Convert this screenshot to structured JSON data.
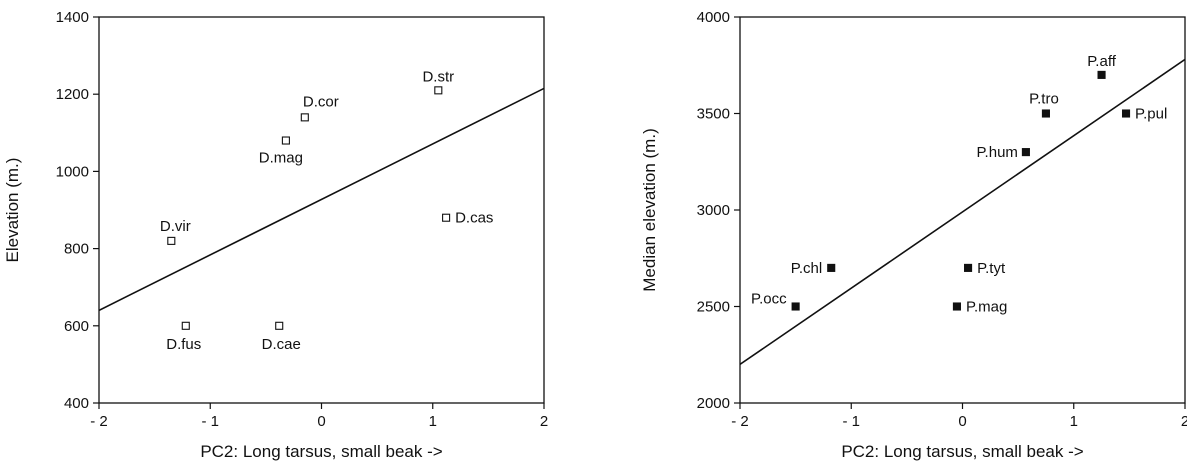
{
  "chart_data": [
    {
      "type": "scatter",
      "xlabel": "PC2: Long tarsus, small beak ->",
      "ylabel": "Elevation (m.)",
      "xlim": [
        -2,
        2
      ],
      "ylim": [
        400,
        1400
      ],
      "xticks": [
        -2,
        -1,
        0,
        1,
        2
      ],
      "xtick_labels": [
        "- 2",
        "- 1",
        "0",
        "1",
        "2"
      ],
      "yticks": [
        400,
        600,
        800,
        1000,
        1200,
        1400
      ],
      "marker": "open-square",
      "points": [
        {
          "label": "D.str",
          "x": 1.05,
          "y": 1210
        },
        {
          "label": "D.cor",
          "x": -0.15,
          "y": 1140
        },
        {
          "label": "D.mag",
          "x": -0.32,
          "y": 1080
        },
        {
          "label": "D.cas",
          "x": 1.12,
          "y": 880
        },
        {
          "label": "D.vir",
          "x": -1.35,
          "y": 820
        },
        {
          "label": "D.fus",
          "x": -1.22,
          "y": 600
        },
        {
          "label": "D.cae",
          "x": -0.38,
          "y": 600
        }
      ],
      "fit_line": {
        "x": [
          -2,
          2
        ],
        "y": [
          640,
          1215
        ]
      }
    },
    {
      "type": "scatter",
      "xlabel": "PC2: Long tarsus, small beak ->",
      "ylabel": "Median elevation (m.)",
      "xlim": [
        -2,
        2
      ],
      "ylim": [
        2000,
        4000
      ],
      "xticks": [
        -2,
        -1,
        0,
        1,
        2
      ],
      "xtick_labels": [
        "- 2",
        "- 1",
        "0",
        "1",
        "2"
      ],
      "yticks": [
        2000,
        2500,
        3000,
        3500,
        4000
      ],
      "marker": "filled-square",
      "points": [
        {
          "label": "P.aff",
          "x": 1.25,
          "y": 3700
        },
        {
          "label": "P.tro",
          "x": 0.75,
          "y": 3500
        },
        {
          "label": "P.pul",
          "x": 1.47,
          "y": 3500
        },
        {
          "label": "P.hum",
          "x": 0.57,
          "y": 3300
        },
        {
          "label": "P.chl",
          "x": -1.18,
          "y": 2700
        },
        {
          "label": "P.tyt",
          "x": 0.05,
          "y": 2700
        },
        {
          "label": "P.occ",
          "x": -1.5,
          "y": 2500
        },
        {
          "label": "P.mag",
          "x": -0.05,
          "y": 2500
        }
      ],
      "fit_line": {
        "x": [
          -2,
          2
        ],
        "y": [
          2200,
          3780
        ]
      }
    }
  ]
}
